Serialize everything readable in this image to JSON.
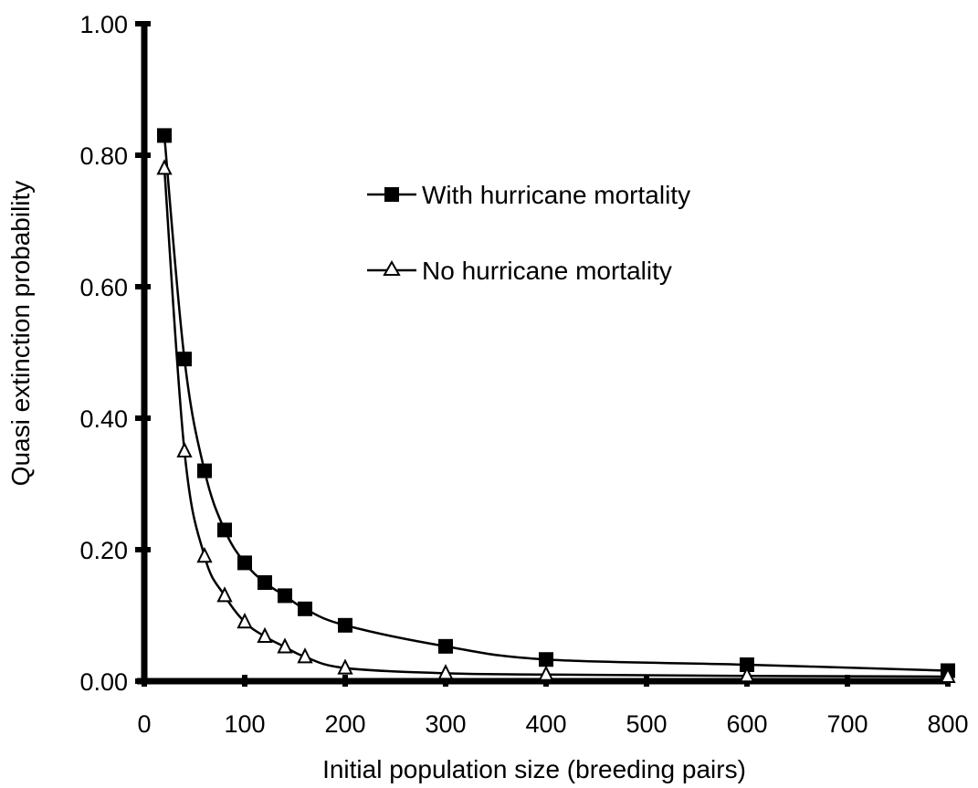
{
  "chart_data": {
    "type": "line",
    "title": "",
    "xlabel": "Initial population size (breeding pairs)",
    "ylabel": "Quasi extinction probability",
    "xlim": [
      0,
      800
    ],
    "ylim": [
      0,
      1.0
    ],
    "x_ticks": [
      "0",
      "100",
      "200",
      "300",
      "400",
      "500",
      "600",
      "700",
      "800"
    ],
    "y_ticks": [
      "0.00",
      "0.20",
      "0.40",
      "0.60",
      "0.80",
      "1.00"
    ],
    "grid": false,
    "legend_position": "upper-right",
    "series": [
      {
        "name": "With hurricane mortality",
        "marker": "filled-square",
        "x": [
          20,
          40,
          60,
          80,
          100,
          120,
          140,
          160,
          200,
          300,
          400,
          600,
          800
        ],
        "values": [
          0.83,
          0.49,
          0.32,
          0.23,
          0.18,
          0.15,
          0.13,
          0.11,
          0.085,
          0.053,
          0.033,
          0.025,
          0.016
        ]
      },
      {
        "name": "No hurricane mortality",
        "marker": "open-triangle",
        "x": [
          20,
          40,
          60,
          80,
          100,
          120,
          140,
          160,
          200,
          300,
          400,
          600,
          800
        ],
        "values": [
          0.78,
          0.35,
          0.19,
          0.13,
          0.09,
          0.068,
          0.052,
          0.037,
          0.02,
          0.012,
          0.01,
          0.008,
          0.007
        ]
      }
    ]
  }
}
